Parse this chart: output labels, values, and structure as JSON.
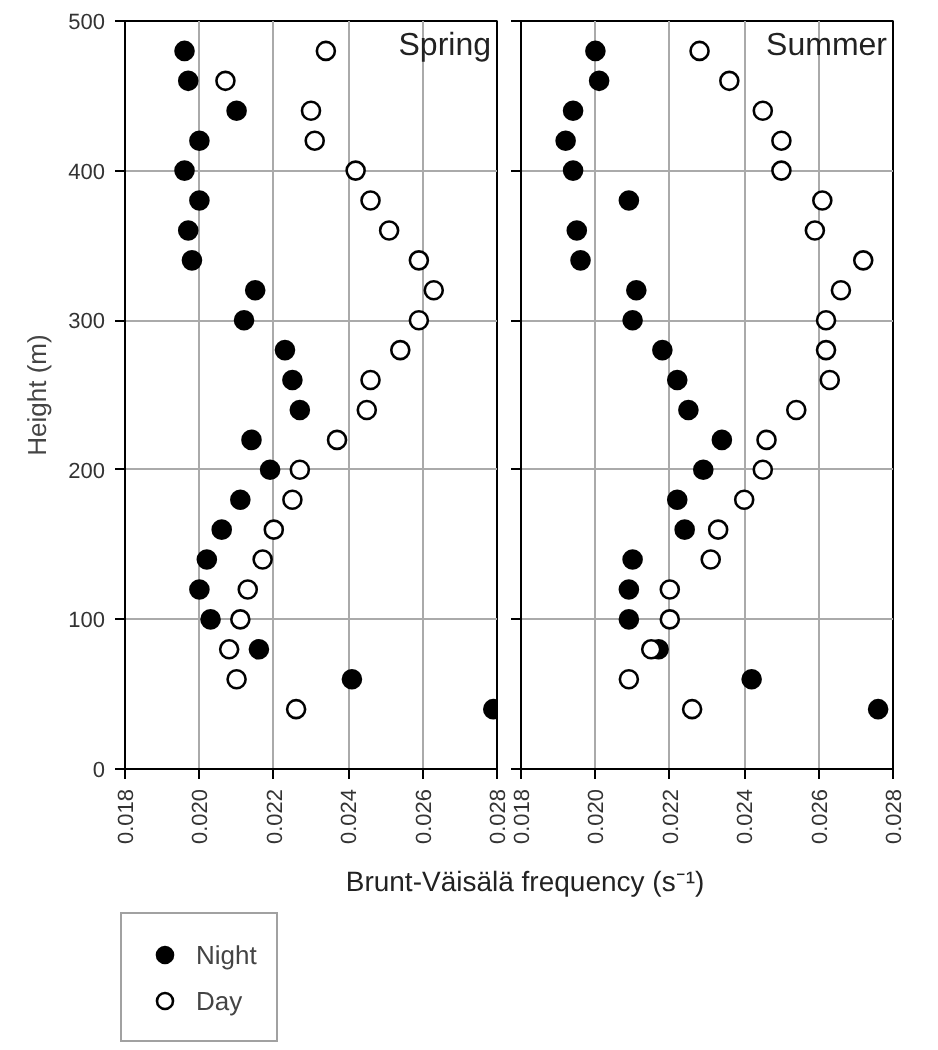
{
  "chart_data": [
    {
      "type": "scatter",
      "title": "Spring",
      "xlabel": "Brunt-Väisälä frequency (s⁻¹)",
      "ylabel": "Height (m)",
      "xlim": [
        0.018,
        0.028
      ],
      "xticks": [
        {
          "value": 0.018,
          "label": "0.018"
        },
        {
          "value": 0.02,
          "label": "0.020"
        },
        {
          "value": 0.022,
          "label": "0.022"
        },
        {
          "value": 0.024,
          "label": "0.024"
        },
        {
          "value": 0.026,
          "label": "0.026"
        },
        {
          "value": 0.028,
          "label": "0.028"
        }
      ],
      "ylim": [
        0,
        500
      ],
      "yticks": [
        0,
        100,
        200,
        300,
        400,
        500
      ],
      "grid": true,
      "legend": "bottom left",
      "marker": "circle",
      "series": [
        {
          "name": "Night",
          "color": "#000000",
          "x": [
            0.0196,
            0.0197,
            0.021,
            0.02,
            0.0196,
            0.02,
            0.0197,
            0.0198,
            0.0215,
            0.0212,
            0.0223,
            0.0225,
            0.0227,
            0.0214,
            0.0219,
            0.0211,
            0.0206,
            0.0202,
            0.02,
            0.0203,
            0.0216,
            0.0241,
            0.0279
          ],
          "values": [
            480,
            460,
            440,
            420,
            400,
            380,
            360,
            340,
            320,
            300,
            280,
            260,
            240,
            220,
            200,
            180,
            160,
            140,
            120,
            100,
            80,
            60,
            40
          ]
        },
        {
          "name": "Day",
          "color": "#ffffff",
          "x": [
            0.0234,
            0.0207,
            0.023,
            0.0231,
            0.0242,
            0.0246,
            0.0251,
            0.0259,
            0.0263,
            0.0259,
            0.0254,
            0.0246,
            0.0245,
            0.0237,
            0.0227,
            0.0225,
            0.022,
            0.0217,
            0.0213,
            0.0211,
            0.0208,
            0.021,
            0.0226
          ],
          "values": [
            480,
            460,
            440,
            420,
            400,
            380,
            360,
            340,
            320,
            300,
            280,
            260,
            240,
            220,
            200,
            180,
            160,
            140,
            120,
            100,
            80,
            60,
            40
          ]
        }
      ]
    },
    {
      "type": "scatter",
      "title": "Summer",
      "xlim": [
        0.018,
        0.028
      ],
      "xticks": [
        {
          "value": 0.018,
          "label": "0.018"
        },
        {
          "value": 0.02,
          "label": "0.020"
        },
        {
          "value": 0.022,
          "label": "0.022"
        },
        {
          "value": 0.024,
          "label": "0.024"
        },
        {
          "value": 0.026,
          "label": "0.026"
        },
        {
          "value": 0.028,
          "label": "0.028"
        }
      ],
      "ylim": [
        0,
        500
      ],
      "yticks": [
        0,
        100,
        200,
        300,
        400,
        500
      ],
      "grid": true,
      "tick_labels": "x",
      "marker": "circle",
      "series": [
        {
          "color": "#000000",
          "x": [
            0.02,
            0.0201,
            0.0194,
            0.0192,
            0.0194,
            0.0209,
            0.0195,
            0.0196,
            0.0211,
            0.021,
            0.0218,
            0.0222,
            0.0225,
            0.0234,
            0.0229,
            0.0222,
            0.0224,
            0.021,
            0.0209,
            0.0209,
            0.0217,
            0.0242,
            0.0276
          ],
          "values": [
            480,
            460,
            440,
            420,
            400,
            380,
            360,
            340,
            320,
            300,
            280,
            260,
            240,
            220,
            200,
            180,
            160,
            140,
            120,
            100,
            80,
            60,
            40
          ]
        },
        {
          "color": "#ffffff",
          "x": [
            0.0228,
            0.0236,
            0.0245,
            0.025,
            0.025,
            0.0261,
            0.0259,
            0.0272,
            0.0266,
            0.0262,
            0.0262,
            0.0263,
            0.0254,
            0.0246,
            0.0245,
            0.024,
            0.0233,
            0.0231,
            0.022,
            0.022,
            0.0215,
            0.0209,
            0.0226
          ],
          "values": [
            480,
            460,
            440,
            420,
            400,
            380,
            360,
            340,
            320,
            300,
            280,
            260,
            240,
            220,
            200,
            180,
            160,
            140,
            120,
            100,
            80,
            60,
            40
          ]
        }
      ]
    }
  ]
}
